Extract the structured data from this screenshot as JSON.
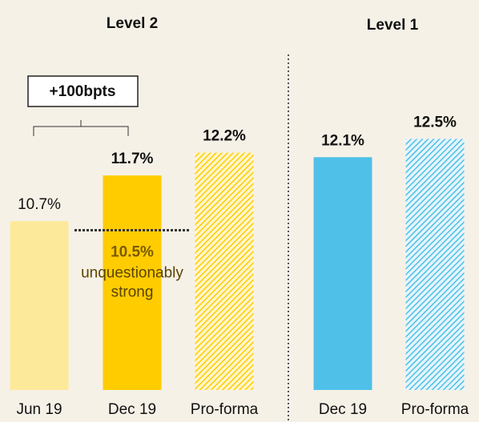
{
  "chart_data": [
    {
      "type": "bar",
      "title": "Level 2",
      "categories": [
        "Jun 19",
        "Dec 19",
        "Pro-forma"
      ],
      "values": [
        10.7,
        11.7,
        12.2
      ],
      "value_labels": [
        "10.7%",
        "11.7%",
        "12.2%"
      ],
      "label_weights": [
        "normal",
        "bold",
        "bold"
      ],
      "colors": [
        "#fde99a",
        "#ffcc00",
        "#ffcc00"
      ],
      "patterns": [
        "solid",
        "solid",
        "hatched"
      ],
      "ylim": [
        7,
        15.5
      ],
      "threshold": {
        "value": 10.5,
        "label": "10.5%",
        "text": [
          "unquestionably",
          "strong"
        ]
      },
      "bracket": {
        "label": "+100bpts"
      }
    },
    {
      "type": "bar",
      "title": "Level 1",
      "categories": [
        "Dec 19",
        "Pro-forma"
      ],
      "values": [
        12.1,
        12.5
      ],
      "value_labels": [
        "12.1%",
        "12.5%"
      ],
      "label_weights": [
        "bold",
        "bold"
      ],
      "colors": [
        "#4fc0e8",
        "#4fc0e8"
      ],
      "patterns": [
        "solid",
        "hatched"
      ],
      "ylim": [
        7,
        15.5
      ]
    }
  ]
}
